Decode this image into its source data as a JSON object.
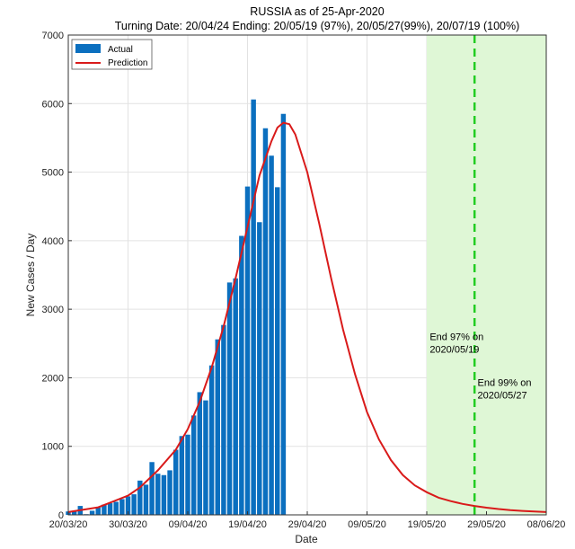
{
  "chart_data": {
    "type": "bar",
    "title": "RUSSIA as of 25-Apr-2020",
    "subtitle": "Turning Date: 20/04/24  Ending: 20/05/19 (97%), 20/05/27(99%), 20/07/19 (100%)",
    "xlabel": "Date",
    "ylabel": "New Cases / Day",
    "xlim": [
      0,
      80
    ],
    "ylim": [
      0,
      7000
    ],
    "y_ticks": [
      0,
      1000,
      2000,
      3000,
      4000,
      5000,
      6000,
      7000
    ],
    "x_ticks": [
      {
        "day": 0,
        "label": "20/03/20"
      },
      {
        "day": 10,
        "label": "30/03/20"
      },
      {
        "day": 20,
        "label": "09/04/20"
      },
      {
        "day": 30,
        "label": "19/04/20"
      },
      {
        "day": 40,
        "label": "29/04/20"
      },
      {
        "day": 50,
        "label": "09/05/20"
      },
      {
        "day": 60,
        "label": "19/05/20"
      },
      {
        "day": 70,
        "label": "29/05/20"
      },
      {
        "day": 80,
        "label": "08/06/20"
      }
    ],
    "grid": true,
    "legend": {
      "position": "top-left",
      "entries": [
        "Actual",
        "Prediction"
      ]
    },
    "series": [
      {
        "name": "Actual",
        "color": "#0b6fbf",
        "start_day": 0,
        "values": [
          50,
          60,
          130,
          10,
          60,
          110,
          150,
          170,
          190,
          230,
          270,
          300,
          500,
          440,
          770,
          600,
          580,
          650,
          950,
          1150,
          1170,
          1450,
          1790,
          1670,
          2180,
          2560,
          2770,
          3390,
          3450,
          4070,
          4790,
          6060,
          4270,
          5640,
          5240,
          4780,
          5850
        ]
      },
      {
        "name": "Prediction",
        "color": "#d91a1a",
        "points": [
          [
            0,
            40
          ],
          [
            5,
            110
          ],
          [
            10,
            280
          ],
          [
            12,
            400
          ],
          [
            15,
            650
          ],
          [
            18,
            950
          ],
          [
            20,
            1250
          ],
          [
            22,
            1650
          ],
          [
            24,
            2150
          ],
          [
            26,
            2750
          ],
          [
            28,
            3450
          ],
          [
            30,
            4200
          ],
          [
            32,
            4950
          ],
          [
            34,
            5450
          ],
          [
            35,
            5650
          ],
          [
            36,
            5720
          ],
          [
            37,
            5700
          ],
          [
            38,
            5550
          ],
          [
            40,
            5000
          ],
          [
            42,
            4250
          ],
          [
            44,
            3450
          ],
          [
            46,
            2700
          ],
          [
            48,
            2050
          ],
          [
            50,
            1500
          ],
          [
            52,
            1100
          ],
          [
            54,
            800
          ],
          [
            56,
            580
          ],
          [
            58,
            430
          ],
          [
            60,
            330
          ],
          [
            62,
            250
          ],
          [
            64,
            200
          ],
          [
            66,
            160
          ],
          [
            68,
            130
          ],
          [
            70,
            105
          ],
          [
            72,
            85
          ],
          [
            74,
            70
          ],
          [
            76,
            58
          ],
          [
            78,
            48
          ],
          [
            80,
            40
          ]
        ]
      }
    ],
    "shaded_region": {
      "from_day": 60,
      "to_day": 80,
      "color": "#dff7d6"
    },
    "vline": {
      "day": 68,
      "color": "#22cc22"
    },
    "annotations": [
      {
        "day": 60.5,
        "y": 2550,
        "lines": [
          "End 97% on",
          "2020/05/19"
        ]
      },
      {
        "day": 68.5,
        "y": 1880,
        "lines": [
          "End 99% on",
          "2020/05/27"
        ]
      }
    ]
  }
}
